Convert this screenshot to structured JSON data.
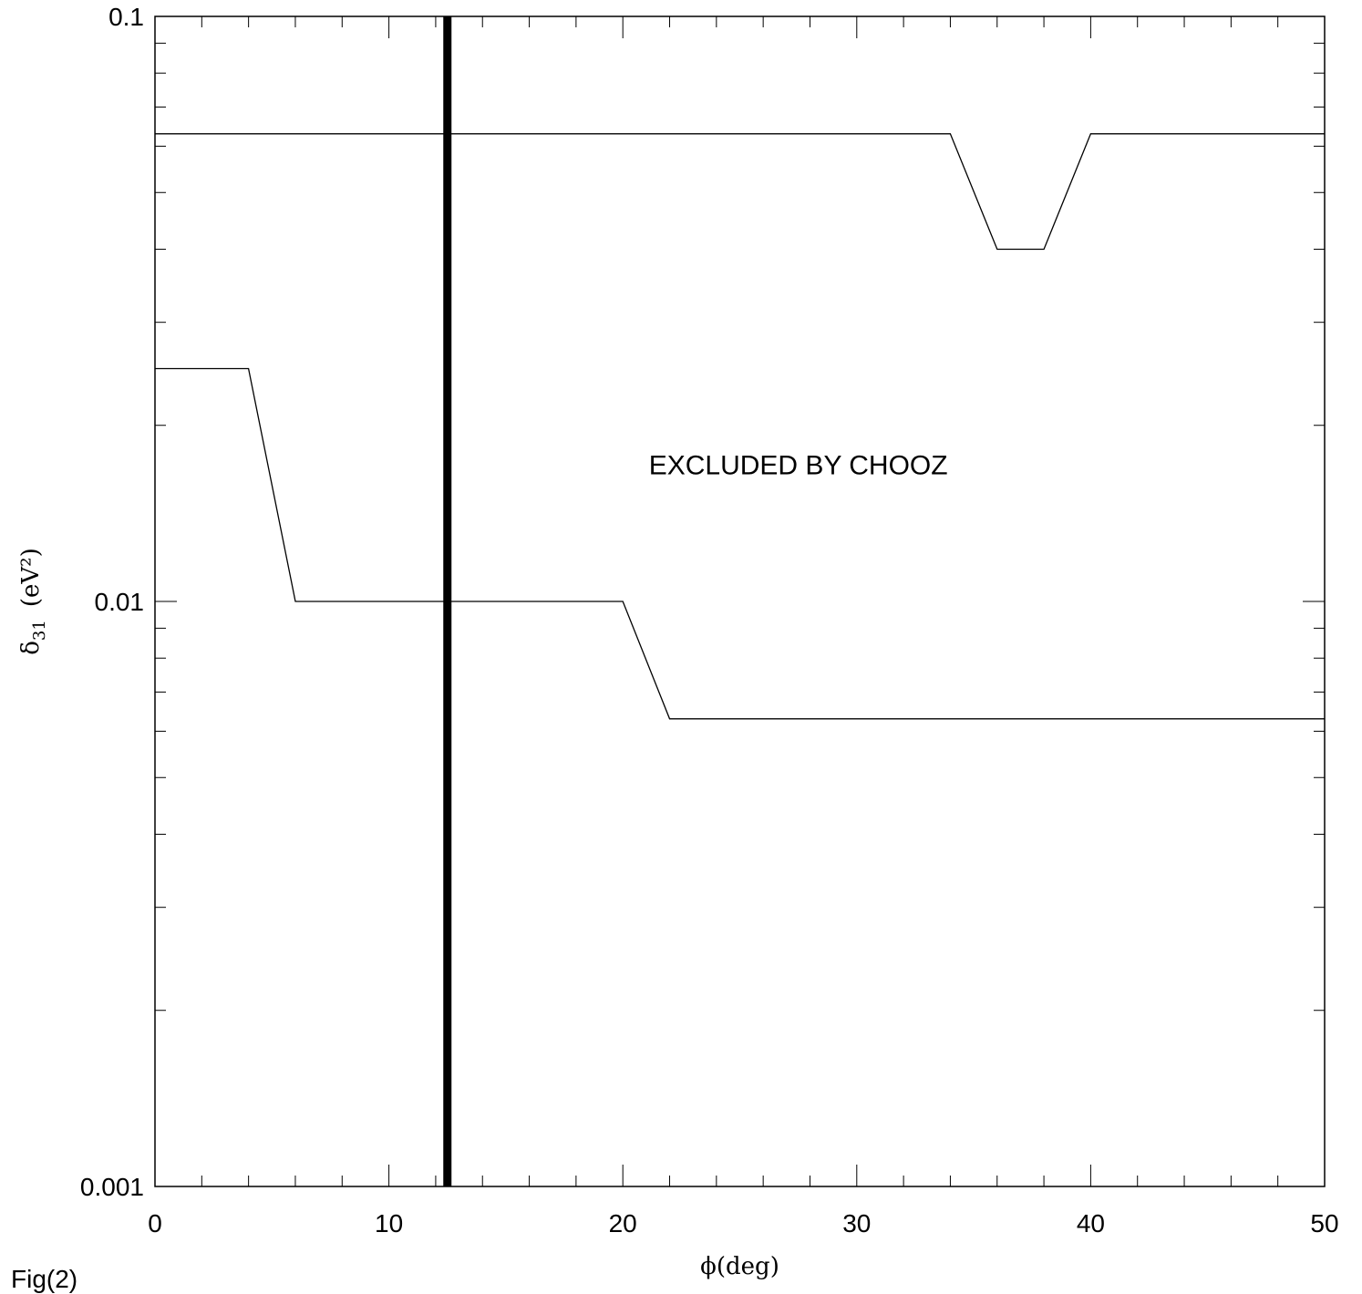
{
  "figure_label": "Fig(2)",
  "chart_data": {
    "type": "line",
    "title": "",
    "xlabel": "ϕ(deg)",
    "ylabel": {
      "base": "δ",
      "sub": "31",
      "unit": "(eV²)"
    },
    "xlim": [
      0,
      50
    ],
    "ylim": [
      0.001,
      0.1
    ],
    "y_scale": "log",
    "x_ticks": [
      0,
      10,
      20,
      30,
      40,
      50
    ],
    "x_tick_labels": [
      "0",
      "10",
      "20",
      "30",
      "40",
      "50"
    ],
    "y_ticks": [
      0.001,
      0.01,
      0.1
    ],
    "y_tick_labels": [
      "0.001",
      "0.01",
      "0.1"
    ],
    "grid": false,
    "series": [
      {
        "x": [
          0,
          34,
          36,
          38,
          40,
          50
        ],
        "y": [
          0.063,
          0.063,
          0.04,
          0.04,
          0.063,
          0.063
        ]
      },
      {
        "x": [
          0,
          4,
          6,
          20,
          22,
          50
        ],
        "y": [
          0.025,
          0.025,
          0.01,
          0.01,
          0.0063,
          0.0063
        ]
      }
    ],
    "vertical_lines": [
      {
        "x": 12.5,
        "style": "thick"
      }
    ],
    "annotations": [
      {
        "text": "EXCLUDED BY CHOOZ",
        "x": 27.5,
        "y": 0.0165
      }
    ]
  }
}
